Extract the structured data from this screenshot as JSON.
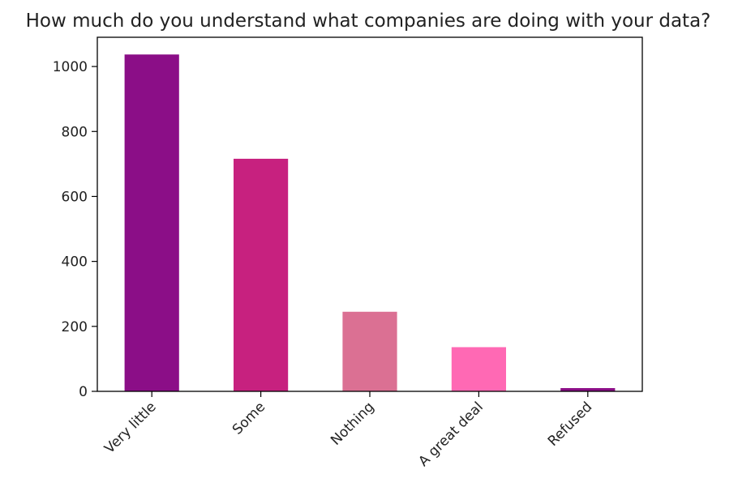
{
  "chart_data": {
    "type": "bar",
    "title": "How much do you understand what companies are doing with your data?",
    "xlabel": "",
    "ylabel": "",
    "categories": [
      "Very little",
      "Some",
      "Nothing",
      "A great deal",
      "Refused"
    ],
    "values": [
      1037,
      716,
      245,
      136,
      10
    ],
    "colors": [
      "#8b0e87",
      "#c7217f",
      "#db7093",
      "#ff69b4",
      "#8b0e87"
    ],
    "ylim": [
      0,
      1090
    ],
    "yticks": [
      0,
      200,
      400,
      600,
      800,
      1000
    ],
    "ytick_labels": [
      "0",
      "200",
      "400",
      "600",
      "800",
      "1000"
    ],
    "grid": false,
    "legend": "none",
    "x_tick_rotation": -45
  }
}
